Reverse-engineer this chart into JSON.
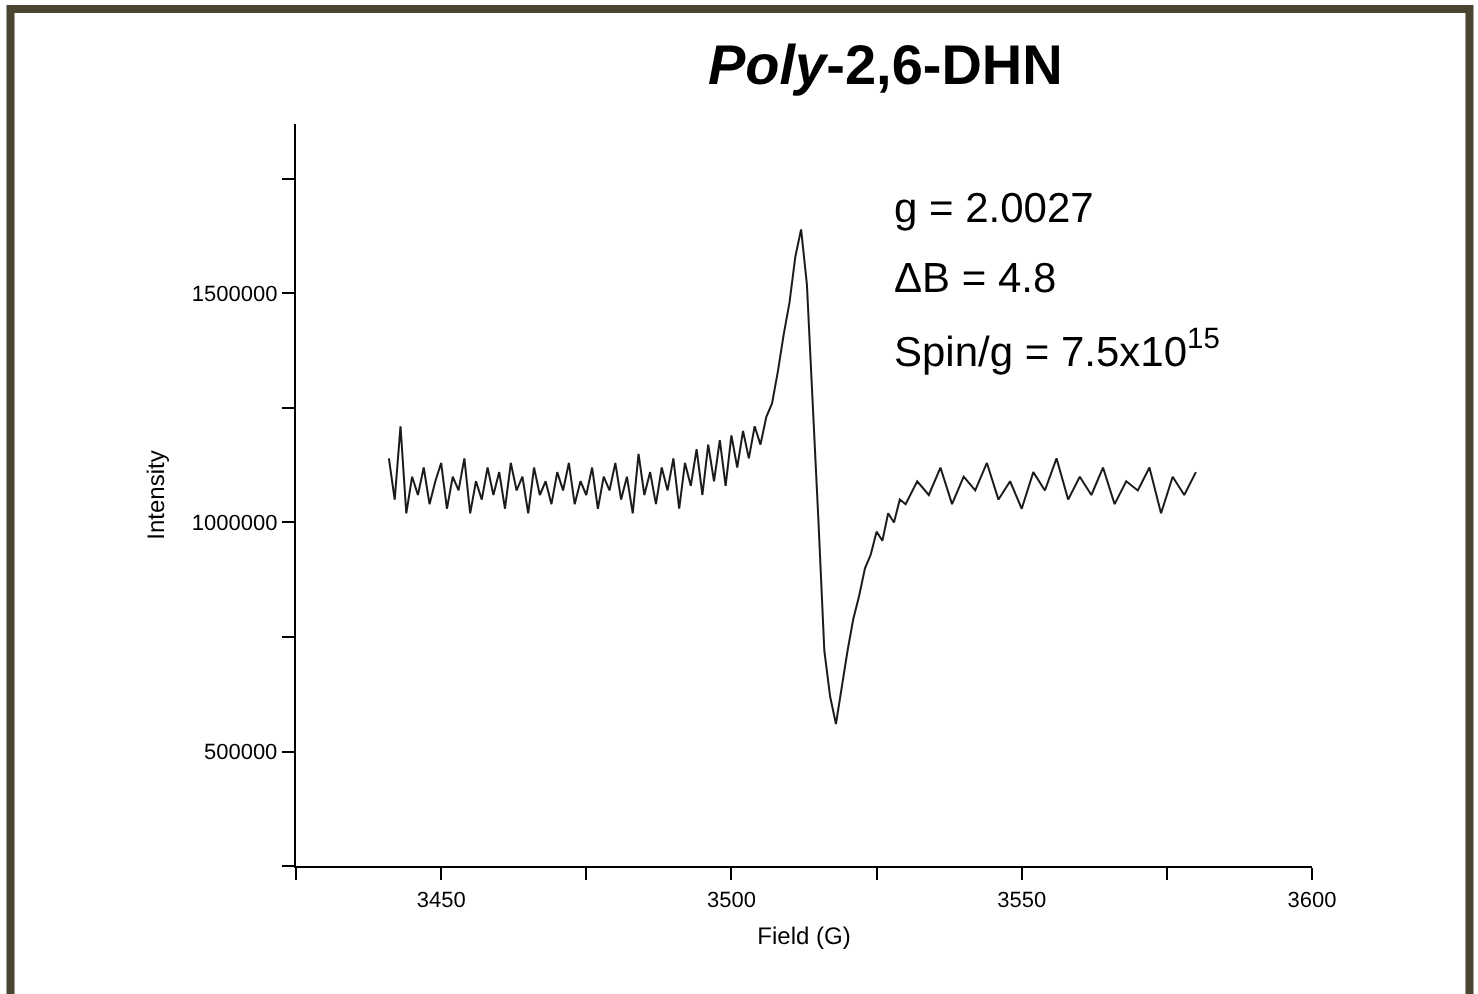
{
  "chart_data": {
    "type": "line",
    "title": "Poly-2,6-DHN",
    "xlabel": "Field (G)",
    "ylabel": "Intensity",
    "annotations": [
      "g = 2.0027",
      "ΔB = 4.8",
      "Spin/g = 7.5x10$^{15}$"
    ],
    "xlim": [
      3425,
      3600
    ],
    "xticks": [
      {
        "value": 3425,
        "label": null
      },
      3450,
      {
        "value": 3475,
        "label": null
      },
      3500,
      {
        "value": 3525,
        "label": null
      },
      3550,
      {
        "value": 3575,
        "label": null
      },
      3600
    ],
    "ylim": [
      250000,
      1870000
    ],
    "yticks": [
      {
        "value": 250000,
        "label": null
      },
      500000,
      {
        "value": 750000,
        "label": null
      },
      1000000,
      {
        "value": 1250000,
        "label": null
      },
      1500000,
      {
        "value": 1750000,
        "label": null
      }
    ],
    "marker": "none",
    "line_style": "solid",
    "series": [
      {
        "color": "#1a1a1a",
        "x": [
          3441,
          3442,
          3443,
          3444,
          3445,
          3446,
          3447,
          3448,
          3449,
          3450,
          3451,
          3452,
          3453,
          3454,
          3455,
          3456,
          3457,
          3458,
          3459,
          3460,
          3461,
          3462,
          3463,
          3464,
          3465,
          3466,
          3467,
          3468,
          3469,
          3470,
          3471,
          3472,
          3473,
          3474,
          3475,
          3476,
          3477,
          3478,
          3479,
          3480,
          3481,
          3482,
          3483,
          3484,
          3485,
          3486,
          3487,
          3488,
          3489,
          3490,
          3491,
          3492,
          3493,
          3494,
          3495,
          3496,
          3497,
          3498,
          3499,
          3500,
          3501,
          3502,
          3503,
          3504,
          3505,
          3506,
          3507,
          3508,
          3509,
          3510,
          3511,
          3512,
          3513,
          3514,
          3515,
          3516,
          3517,
          3518,
          3519,
          3520,
          3521,
          3522,
          3523,
          3524,
          3525,
          3526,
          3527,
          3528,
          3529,
          3530,
          3532,
          3534,
          3536,
          3538,
          3540,
          3542,
          3544,
          3546,
          3548,
          3550,
          3552,
          3554,
          3556,
          3558,
          3560,
          3562,
          3564,
          3566,
          3568,
          3570,
          3572,
          3574,
          3576,
          3578,
          3580
        ],
        "values": [
          1140000,
          1050000,
          1210000,
          1020000,
          1100000,
          1060000,
          1120000,
          1040000,
          1090000,
          1130000,
          1030000,
          1100000,
          1070000,
          1140000,
          1020000,
          1090000,
          1050000,
          1120000,
          1060000,
          1110000,
          1030000,
          1130000,
          1070000,
          1100000,
          1020000,
          1120000,
          1060000,
          1090000,
          1040000,
          1110000,
          1070000,
          1130000,
          1040000,
          1090000,
          1060000,
          1120000,
          1030000,
          1100000,
          1070000,
          1130000,
          1050000,
          1100000,
          1020000,
          1150000,
          1060000,
          1110000,
          1040000,
          1120000,
          1070000,
          1140000,
          1030000,
          1130000,
          1080000,
          1160000,
          1060000,
          1170000,
          1090000,
          1180000,
          1080000,
          1190000,
          1120000,
          1200000,
          1140000,
          1210000,
          1170000,
          1230000,
          1260000,
          1330000,
          1410000,
          1480000,
          1580000,
          1640000,
          1520000,
          1260000,
          1000000,
          720000,
          620000,
          560000,
          640000,
          720000,
          790000,
          840000,
          900000,
          930000,
          980000,
          960000,
          1020000,
          1000000,
          1050000,
          1040000,
          1090000,
          1060000,
          1120000,
          1040000,
          1100000,
          1070000,
          1130000,
          1050000,
          1090000,
          1030000,
          1110000,
          1070000,
          1140000,
          1050000,
          1100000,
          1060000,
          1120000,
          1040000,
          1090000,
          1070000,
          1120000,
          1020000,
          1100000,
          1060000,
          1110000
        ]
      }
    ]
  }
}
